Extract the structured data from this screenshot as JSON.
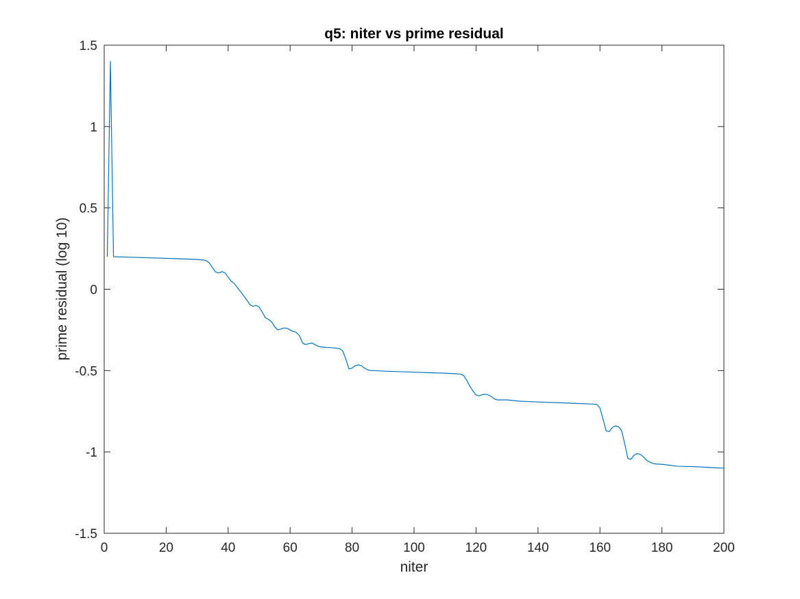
{
  "chart_data": {
    "type": "line",
    "title": "q5: niter vs prime residual",
    "xlabel": "niter",
    "ylabel": "prime residual (log 10)",
    "xlim": [
      0,
      200
    ],
    "ylim": [
      -1.5,
      1.5
    ],
    "xticks": [
      0,
      20,
      40,
      60,
      80,
      100,
      120,
      140,
      160,
      180,
      200
    ],
    "xtick_labels": [
      "0",
      "20",
      "40",
      "60",
      "80",
      "100",
      "120",
      "140",
      "160",
      "180",
      "200"
    ],
    "yticks": [
      -1.5,
      -1,
      -0.5,
      0,
      0.5,
      1,
      1.5
    ],
    "ytick_labels": [
      "-1.5",
      "-1",
      "-0.5",
      "0",
      "0.5",
      "1",
      "1.5"
    ],
    "grid": false,
    "box": true,
    "series": [
      {
        "color": "#0072BD",
        "x": [
          1,
          2,
          3,
          10,
          20,
          30,
          32,
          33,
          34,
          35,
          36,
          37,
          38,
          39,
          40,
          41,
          42,
          43,
          44,
          45,
          46,
          47,
          48,
          49,
          50,
          51,
          52,
          53,
          54,
          55,
          56,
          57,
          58,
          59,
          60,
          61,
          62,
          63,
          64,
          65,
          66,
          67,
          68,
          69,
          70,
          71,
          72,
          74,
          76,
          77,
          78,
          79,
          80,
          81,
          82,
          83,
          84,
          85,
          86,
          87,
          90,
          100,
          110,
          114,
          115,
          116,
          117,
          118,
          119,
          120,
          121,
          122,
          123,
          124,
          125,
          126,
          127,
          128,
          130,
          134,
          140,
          150,
          158,
          159,
          160,
          161,
          162,
          163,
          164,
          165,
          166,
          167,
          168,
          169,
          170,
          171,
          172,
          173,
          174,
          175,
          176,
          177,
          178,
          180,
          185,
          190,
          195,
          200
        ],
        "y": [
          0.2,
          1.4,
          0.2,
          0.196,
          0.19,
          0.183,
          0.18,
          0.175,
          0.16,
          0.13,
          0.105,
          0.1,
          0.108,
          0.1,
          0.075,
          0.05,
          0.035,
          0.01,
          -0.015,
          -0.04,
          -0.065,
          -0.095,
          -0.105,
          -0.1,
          -0.108,
          -0.14,
          -0.175,
          -0.185,
          -0.2,
          -0.23,
          -0.25,
          -0.245,
          -0.238,
          -0.24,
          -0.25,
          -0.26,
          -0.265,
          -0.285,
          -0.33,
          -0.34,
          -0.335,
          -0.33,
          -0.34,
          -0.35,
          -0.355,
          -0.356,
          -0.358,
          -0.36,
          -0.365,
          -0.38,
          -0.43,
          -0.49,
          -0.485,
          -0.47,
          -0.465,
          -0.47,
          -0.485,
          -0.495,
          -0.5,
          -0.5,
          -0.503,
          -0.51,
          -0.516,
          -0.52,
          -0.522,
          -0.53,
          -0.56,
          -0.595,
          -0.625,
          -0.65,
          -0.655,
          -0.648,
          -0.645,
          -0.65,
          -0.66,
          -0.675,
          -0.68,
          -0.68,
          -0.68,
          -0.688,
          -0.693,
          -0.7,
          -0.706,
          -0.708,
          -0.73,
          -0.8,
          -0.87,
          -0.875,
          -0.85,
          -0.84,
          -0.845,
          -0.87,
          -0.95,
          -1.04,
          -1.045,
          -1.02,
          -1.01,
          -1.015,
          -1.03,
          -1.05,
          -1.062,
          -1.07,
          -1.074,
          -1.076,
          -1.088,
          -1.09,
          -1.095,
          -1.1
        ]
      }
    ]
  }
}
